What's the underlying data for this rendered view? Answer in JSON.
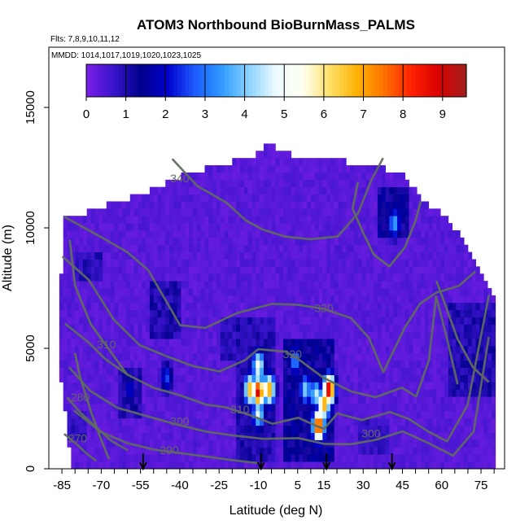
{
  "chart_data": {
    "type": "heatmap",
    "title": "ATOM3 Northbound BioBurnMass_PALMS",
    "subtitle_flights": "Flts: 7,8,9,10,11,12",
    "subtitle_dates": "MMDD: 1014,1017,1019,1020,1023,1025",
    "xlabel": "Latitude (deg N)",
    "ylabel": "Altitude (m)",
    "xlim": [
      -90,
      84
    ],
    "ylim": [
      0,
      17500
    ],
    "x_ticks": [
      -85,
      -70,
      -55,
      -40,
      -25,
      -10,
      5,
      15,
      30,
      45,
      60,
      75
    ],
    "y_ticks": [
      0,
      5000,
      10000,
      15000
    ],
    "colorbar": {
      "range": [
        0,
        9.6
      ],
      "ticks": [
        0,
        1,
        2,
        3,
        4,
        5,
        6,
        7,
        8,
        9
      ],
      "colors": [
        "#7a1fe6",
        "#3a14cc",
        "#00008b",
        "#0000cd",
        "#1e5bff",
        "#2f9bff",
        "#8cd2ff",
        "#eefbff",
        "#fffff0",
        "#ffe066",
        "#ffb000",
        "#ff7000",
        "#ff2000",
        "#d80000",
        "#a0201e"
      ]
    },
    "background_value": 0.2,
    "hotspots": [
      {
        "lat": -10,
        "alt": 3200,
        "value": 9.0
      },
      {
        "lat": -13,
        "alt": 3300,
        "value": 7.0
      },
      {
        "lat": -6,
        "alt": 3300,
        "value": 7.2
      },
      {
        "lat": -10,
        "alt": 4300,
        "value": 5.4
      },
      {
        "lat": -10,
        "alt": 2300,
        "value": 4.8
      },
      {
        "lat": 13,
        "alt": 1800,
        "value": 8.6
      },
      {
        "lat": 15,
        "alt": 2700,
        "value": 7.2
      },
      {
        "lat": 17,
        "alt": 3300,
        "value": 9.2
      },
      {
        "lat": 12,
        "alt": 3100,
        "value": 4.6
      },
      {
        "lat": 8,
        "alt": 3300,
        "value": 4.2
      },
      {
        "lat": 4,
        "alt": 4500,
        "value": 3.3
      },
      {
        "lat": 42,
        "alt": 10200,
        "value": 3.6
      },
      {
        "lat": -45,
        "alt": 3800,
        "value": 2.6
      },
      {
        "lat": -59,
        "alt": 3300,
        "value": 2.2
      }
    ],
    "dark_regions": [
      {
        "lat0": -19,
        "lat1": -4,
        "alt0": 300,
        "alt1": 6200,
        "value": 1.0
      },
      {
        "lat0": -1,
        "lat1": 19,
        "alt0": 400,
        "alt1": 5500,
        "value": 1.3
      },
      {
        "lat0": 36,
        "lat1": 47,
        "alt0": 9500,
        "alt1": 11800,
        "value": 1.3
      },
      {
        "lat0": -80,
        "lat1": -70,
        "alt0": 7700,
        "alt1": 9000,
        "value": 0.9
      },
      {
        "lat0": -52,
        "lat1": -40,
        "alt0": 5500,
        "alt1": 7800,
        "value": 1.0
      },
      {
        "lat0": -64,
        "lat1": -54,
        "alt0": 2100,
        "alt1": 4100,
        "value": 1.0
      },
      {
        "lat0": -84,
        "lat1": -76,
        "alt0": 1200,
        "alt1": 2500,
        "value": 0.8
      },
      {
        "lat0": 62,
        "lat1": 80,
        "alt0": 3000,
        "alt1": 7000,
        "value": 1.0
      },
      {
        "lat0": 28,
        "lat1": 40,
        "alt0": 500,
        "alt1": 2100,
        "value": 0.8
      },
      {
        "lat0": -24,
        "lat1": -19,
        "alt0": 4500,
        "alt1": 6300,
        "value": 0.9
      }
    ],
    "contours": [
      {
        "level": "340",
        "label_lat": -40,
        "label_alt": 11900
      },
      {
        "level": "330",
        "label_lat": 15,
        "label_alt": 6500
      },
      {
        "level": "320",
        "label_lat": 3,
        "label_alt": 4600
      },
      {
        "level": "310",
        "label_lat": -17,
        "label_alt": 2300
      },
      {
        "level": "300",
        "label_lat": -40,
        "label_alt": 1800
      },
      {
        "level": "300",
        "label_lat": 33,
        "label_alt": 1300
      },
      {
        "level": "290",
        "label_lat": -44,
        "label_alt": 600
      },
      {
        "level": "280",
        "label_lat": -78,
        "label_alt": 2800
      },
      {
        "level": "270",
        "label_lat": -79,
        "label_alt": 1100
      },
      {
        "level": "310",
        "label_lat": -68,
        "label_alt": 5000
      }
    ],
    "flight_arrows_lat": [
      -54,
      -9,
      16,
      41
    ]
  }
}
